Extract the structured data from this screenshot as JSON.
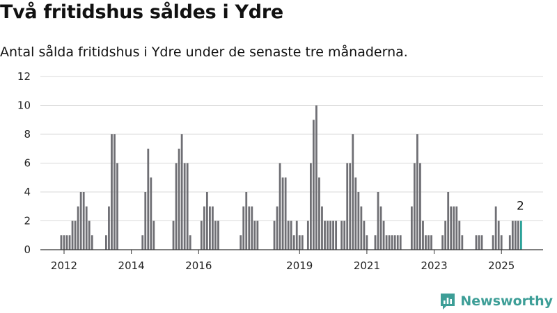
{
  "header": {
    "title": "Två fritidshus såldes i Ydre",
    "subtitle": "Antal sålda fritidshus i Ydre under de senaste tre månaderna."
  },
  "brand": {
    "name": "Newsworthy",
    "color": "#3d9e97",
    "icon": "newsworthy-logo-icon"
  },
  "colors": {
    "bar": "#6f6f74",
    "highlight": "#2aa198",
    "grid": "#d9d9d9",
    "axis": "#333333"
  },
  "chart_data": {
    "type": "bar",
    "title": "Två fritidshus såldes i Ydre",
    "subtitle": "Antal sålda fritidshus i Ydre under de senaste tre månaderna.",
    "xlabel": "",
    "ylabel": "",
    "ylim": [
      0,
      12
    ],
    "yticks": [
      0,
      2,
      4,
      6,
      8,
      10,
      12
    ],
    "xtick_labels": [
      "2012",
      "2014",
      "2016",
      "2019",
      "2021",
      "2023",
      "2025"
    ],
    "grid": "horizontal",
    "legend": "none",
    "x_start": "2011-12",
    "frequency": "monthly",
    "values": [
      1,
      1,
      1,
      1,
      2,
      2,
      3,
      4,
      4,
      3,
      2,
      1,
      0,
      0,
      0,
      0,
      1,
      3,
      8,
      8,
      6,
      0,
      0,
      0,
      0,
      0,
      0,
      0,
      0,
      1,
      4,
      7,
      5,
      2,
      0,
      0,
      0,
      0,
      0,
      0,
      2,
      6,
      7,
      8,
      6,
      6,
      1,
      0,
      0,
      0,
      2,
      3,
      4,
      3,
      3,
      2,
      2,
      0,
      0,
      0,
      0,
      0,
      0,
      0,
      1,
      3,
      4,
      3,
      3,
      2,
      2,
      0,
      0,
      0,
      0,
      0,
      2,
      3,
      6,
      5,
      5,
      2,
      2,
      1,
      2,
      1,
      1,
      0,
      2,
      6,
      9,
      10,
      5,
      3,
      2,
      2,
      2,
      2,
      2,
      0,
      2,
      2,
      6,
      6,
      8,
      5,
      4,
      3,
      2,
      1,
      0,
      0,
      1,
      4,
      3,
      2,
      1,
      1,
      1,
      1,
      1,
      1,
      0,
      0,
      0,
      3,
      6,
      8,
      6,
      2,
      1,
      1,
      1,
      0,
      0,
      0,
      1,
      2,
      4,
      3,
      3,
      3,
      2,
      1,
      0,
      0,
      0,
      0,
      1,
      1,
      1,
      0,
      0,
      0,
      1,
      3,
      2,
      1,
      0,
      0,
      1,
      2,
      2,
      2,
      2
    ],
    "highlight_last": true,
    "annotations": [
      {
        "label": "2"
      }
    ]
  }
}
